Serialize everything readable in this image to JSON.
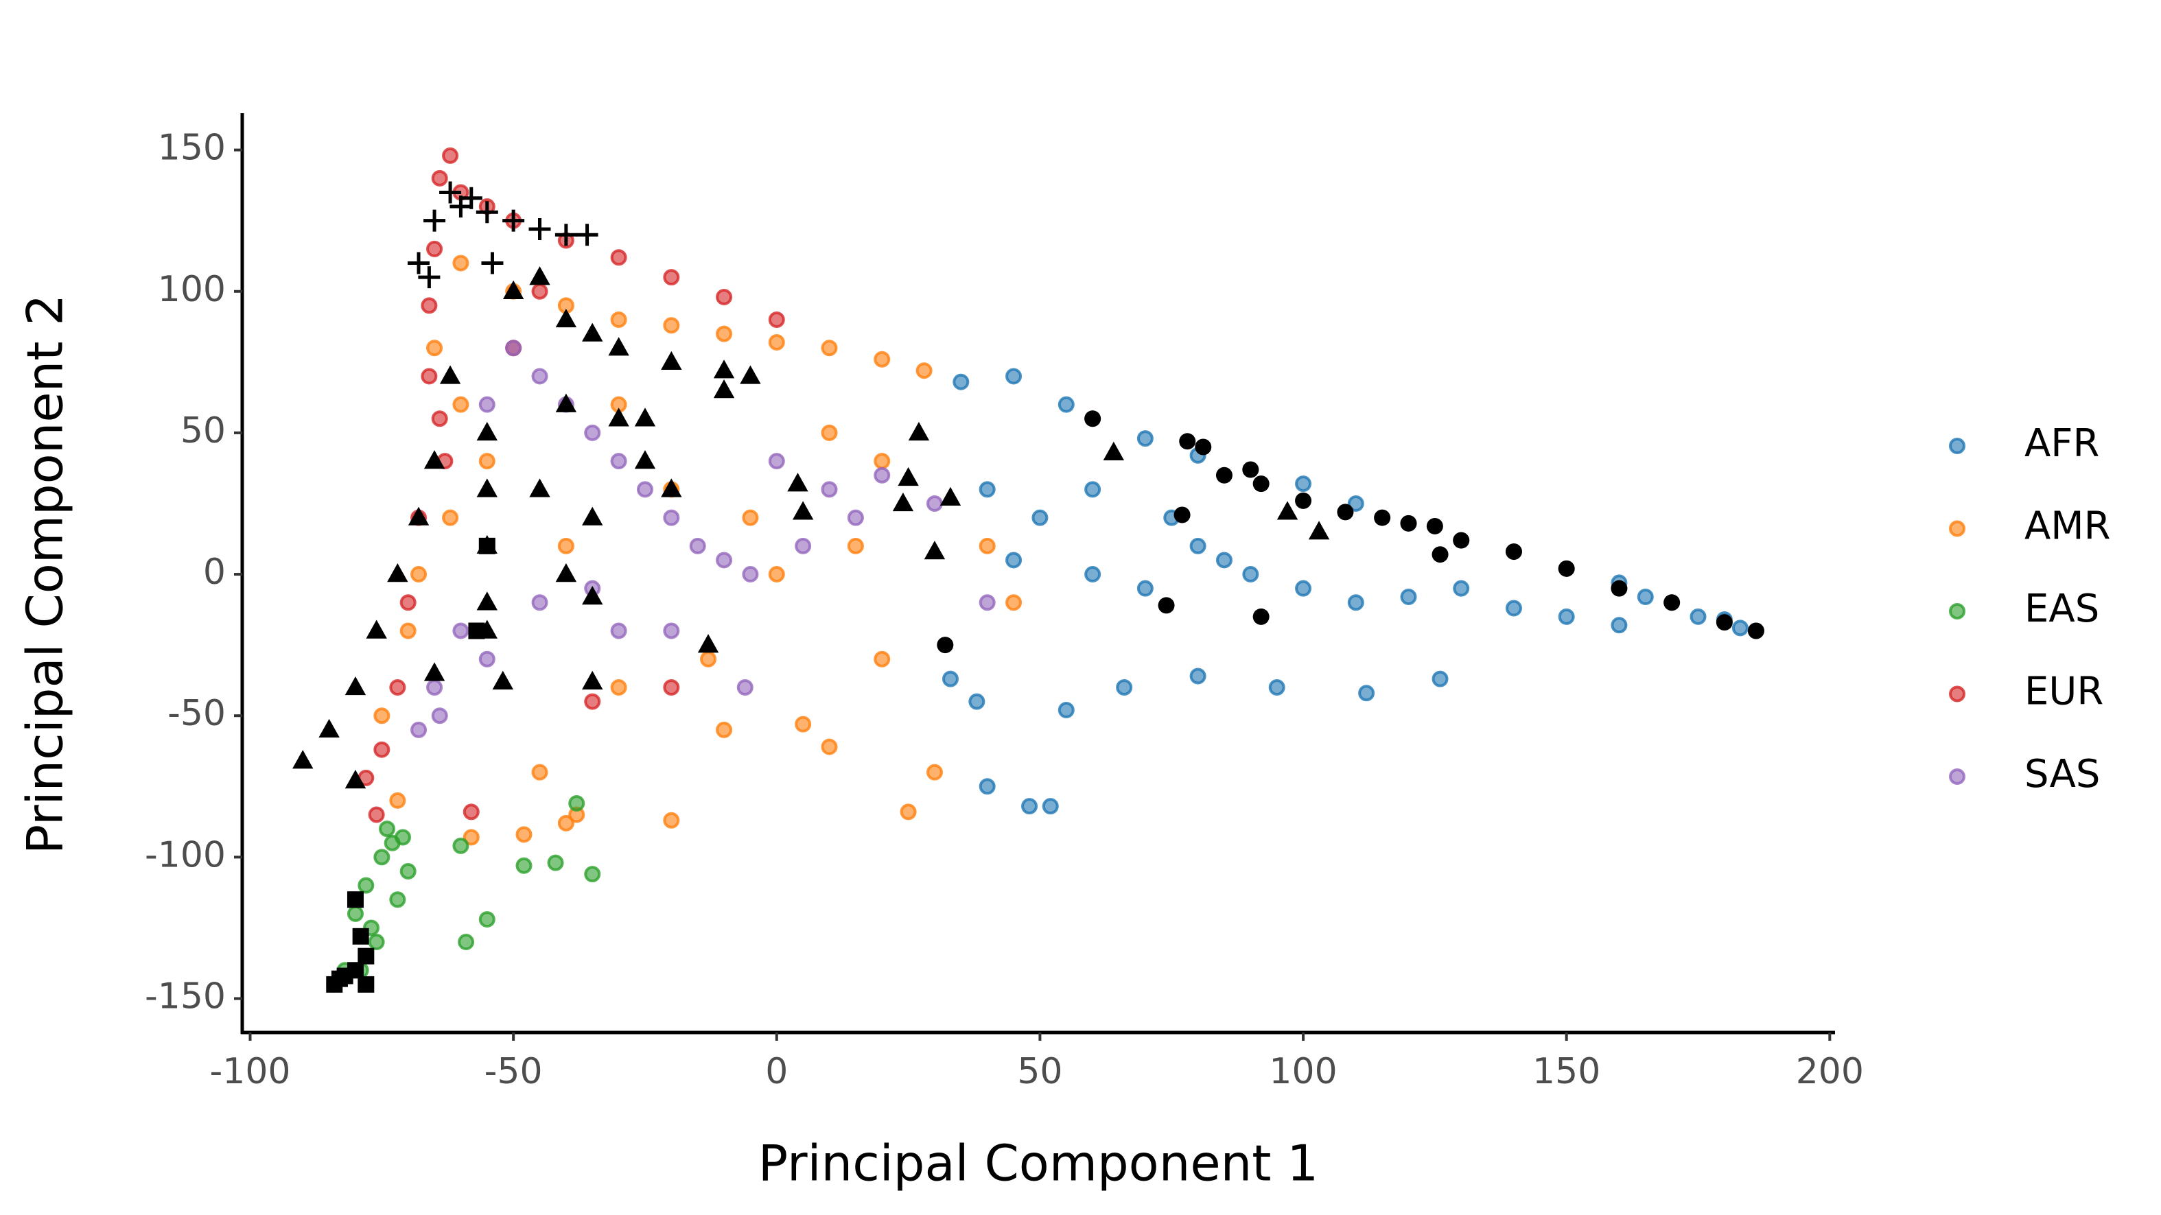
{
  "chart_data": {
    "type": "scatter",
    "xlabel": "Principal Component 1",
    "ylabel": "Principal Component 2",
    "xlim": [
      -101.5,
      201
    ],
    "ylim": [
      -162,
      163
    ],
    "xticks": [
      -100,
      -50,
      0,
      50,
      100,
      150,
      200
    ],
    "yticks": [
      -150,
      -100,
      -50,
      0,
      50,
      100,
      150
    ],
    "grid": false,
    "legend": "right",
    "series": [
      {
        "name": "AFR",
        "color": "#1f77b4",
        "marker": "circle",
        "x": [
          35,
          45,
          55,
          60,
          70,
          80,
          90,
          100,
          110,
          120,
          130,
          140,
          150,
          160,
          170,
          180,
          186,
          183,
          175,
          165,
          40,
          50,
          45,
          60,
          70,
          80,
          90,
          100,
          110,
          120,
          130,
          140,
          150,
          160,
          38,
          40,
          48,
          52,
          55,
          66,
          80,
          95,
          112,
          126,
          33,
          75,
          60,
          85
        ],
        "y": [
          68,
          70,
          60,
          55,
          48,
          42,
          37,
          32,
          25,
          18,
          12,
          8,
          2,
          -3,
          -10,
          -16,
          -20,
          -19,
          -15,
          -8,
          30,
          20,
          5,
          0,
          -5,
          10,
          0,
          -5,
          -10,
          -8,
          -5,
          -12,
          -15,
          -18,
          -45,
          -75,
          -82,
          -82,
          -48,
          -40,
          -36,
          -40,
          -42,
          -37,
          -37,
          20,
          30,
          5
        ]
      },
      {
        "name": "AMR",
        "color": "#ff7f0e",
        "marker": "circle",
        "x": [
          -60,
          -50,
          -40,
          -30,
          -20,
          -10,
          0,
          10,
          20,
          28,
          -65,
          -60,
          -55,
          -62,
          -68,
          -70,
          -75,
          -72,
          -45,
          -40,
          -20,
          -10,
          5,
          10,
          25,
          30,
          20,
          -5,
          10,
          20,
          -30,
          -20,
          -40,
          -30,
          -13,
          0,
          15,
          40,
          45,
          -48,
          -38,
          -58
        ],
        "y": [
          110,
          100,
          95,
          90,
          88,
          85,
          82,
          80,
          76,
          72,
          80,
          60,
          40,
          20,
          0,
          -20,
          -50,
          -80,
          -70,
          -88,
          -87,
          -55,
          -53,
          -61,
          -84,
          -70,
          -30,
          20,
          50,
          40,
          60,
          30,
          10,
          -40,
          -30,
          0,
          10,
          10,
          -10,
          -92,
          -85,
          -93
        ]
      },
      {
        "name": "EAS",
        "color": "#2ca02c",
        "marker": "circle",
        "x": [
          -75,
          -73,
          -78,
          -80,
          -76,
          -82,
          -70,
          -72,
          -74,
          -60,
          -48,
          -42,
          -35,
          -38,
          -55,
          -59,
          -79,
          -84,
          -71,
          -77
        ],
        "y": [
          -100,
          -95,
          -110,
          -120,
          -130,
          -140,
          -105,
          -115,
          -90,
          -96,
          -103,
          -102,
          -106,
          -81,
          -122,
          -130,
          -140,
          -145,
          -93,
          -125
        ]
      },
      {
        "name": "EUR",
        "color": "#d62728",
        "marker": "circle",
        "x": [
          -62,
          -64,
          -60,
          -55,
          -50,
          -40,
          -30,
          -20,
          -10,
          0,
          -65,
          -66,
          -66,
          -64,
          -63,
          -68,
          -70,
          -72,
          -75,
          -78,
          -76,
          -35,
          -20,
          -58,
          -45,
          -50
        ],
        "y": [
          148,
          140,
          135,
          130,
          125,
          118,
          112,
          105,
          98,
          90,
          115,
          95,
          70,
          55,
          40,
          20,
          -10,
          -40,
          -62,
          -72,
          -85,
          -45,
          -40,
          -84,
          100,
          80
        ]
      },
      {
        "name": "SAS",
        "color": "#9467bd",
        "marker": "circle",
        "x": [
          -50,
          -45,
          -40,
          -35,
          -30,
          -25,
          -20,
          -15,
          -10,
          -5,
          5,
          15,
          20,
          30,
          40,
          -60,
          -65,
          -68,
          -64,
          -55,
          -45,
          -35,
          -20,
          -6,
          -30,
          -55,
          0,
          10
        ],
        "y": [
          80,
          70,
          60,
          50,
          40,
          30,
          20,
          10,
          5,
          0,
          10,
          20,
          35,
          25,
          -10,
          -20,
          -40,
          -55,
          -50,
          -30,
          -10,
          -5,
          -20,
          -40,
          -20,
          60,
          40,
          30
        ]
      },
      {
        "color": "#000000",
        "marker": "circle",
        "x": [
          60,
          78,
          81,
          85,
          90,
          92,
          100,
          108,
          115,
          120,
          125,
          130,
          140,
          150,
          160,
          170,
          180,
          186,
          126,
          77,
          74,
          92,
          32
        ],
        "y": [
          55,
          47,
          45,
          35,
          37,
          32,
          26,
          22,
          20,
          18,
          17,
          12,
          8,
          2,
          -5,
          -10,
          -17,
          -20,
          7,
          21,
          -11,
          -15,
          -25
        ]
      },
      {
        "color": "#000000",
        "marker": "triangle",
        "x": [
          -90,
          -85,
          -80,
          -76,
          -72,
          -68,
          -65,
          -62,
          -55,
          -55,
          -55,
          -55,
          -55,
          -50,
          -45,
          -40,
          -35,
          -30,
          -20,
          -10,
          -5,
          -40,
          -30,
          -25,
          -20,
          -45,
          -35,
          -40,
          -35,
          -13,
          -35,
          -52,
          -65,
          -80,
          4,
          5,
          25,
          24,
          30,
          33,
          27,
          64,
          97,
          103,
          -25,
          -10
        ],
        "y": [
          -66,
          -55,
          -40,
          -20,
          0,
          20,
          40,
          70,
          50,
          30,
          10,
          -10,
          -20,
          100,
          105,
          90,
          85,
          80,
          75,
          72,
          70,
          60,
          55,
          40,
          30,
          30,
          20,
          0,
          -8,
          -25,
          -38,
          -38,
          -35,
          -73,
          32,
          22,
          34,
          25,
          8,
          27,
          50,
          43,
          22,
          15,
          55,
          65
        ]
      },
      {
        "color": "#000000",
        "marker": "plus",
        "x": [
          -60,
          -55,
          -50,
          -62,
          -65,
          -68,
          -66,
          -45,
          -40,
          -36,
          -54,
          -58
        ],
        "y": [
          130,
          128,
          125,
          135,
          125,
          110,
          105,
          122,
          120,
          120,
          110,
          133
        ]
      },
      {
        "color": "#000000",
        "marker": "square",
        "x": [
          -84,
          -82,
          -80,
          -78,
          -79,
          -80,
          -83,
          -78,
          -57,
          -55
        ],
        "y": [
          -145,
          -142,
          -140,
          -135,
          -128,
          -115,
          -143,
          -145,
          -20,
          10
        ]
      }
    ]
  }
}
